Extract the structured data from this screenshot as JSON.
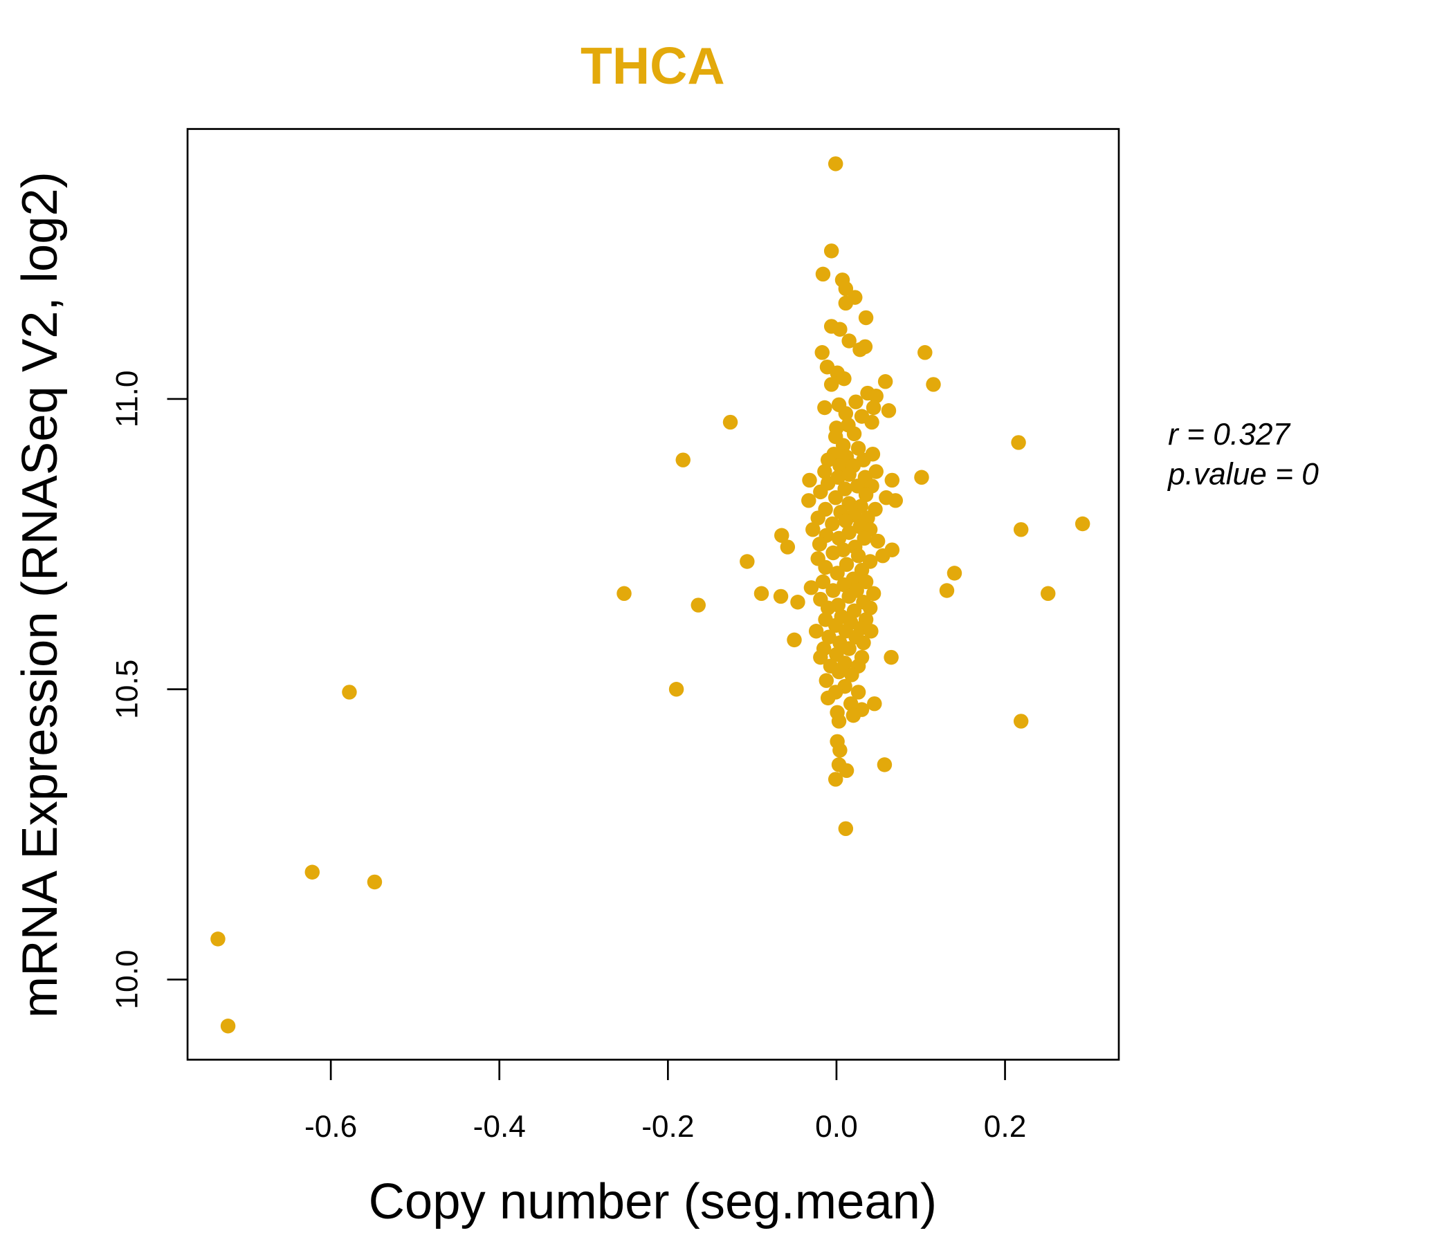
{
  "chart_data": {
    "type": "scatter",
    "title": "THCA",
    "xlabel": "Copy number (seg.mean)",
    "ylabel": "mRNA Expression (RNASeq V2, log2)",
    "xlim": [
      -0.77,
      0.335
    ],
    "ylim": [
      9.862,
      11.465
    ],
    "xticks": [
      -0.6,
      -0.4,
      -0.2,
      0.0,
      0.2
    ],
    "xtick_labels": [
      "-0.6",
      "-0.4",
      "-0.2",
      "0.0",
      "0.2"
    ],
    "yticks": [
      10.0,
      10.5,
      11.0
    ],
    "ytick_labels": [
      "10.0",
      "10.5",
      "11.0"
    ],
    "annotations": [
      "r = 0.327",
      "p.value = 0"
    ],
    "point_color": "#E3A90B",
    "grid": false,
    "legend": "none",
    "points": [
      [
        -0.734,
        10.07
      ],
      [
        -0.722,
        9.92
      ],
      [
        -0.622,
        10.185
      ],
      [
        -0.548,
        10.168
      ],
      [
        -0.578,
        10.495
      ],
      [
        -0.252,
        10.665
      ],
      [
        -0.19,
        10.5
      ],
      [
        -0.182,
        10.895
      ],
      [
        -0.164,
        10.645
      ],
      [
        -0.126,
        10.96
      ],
      [
        -0.106,
        10.72
      ],
      [
        -0.089,
        10.665
      ],
      [
        -0.066,
        10.66
      ],
      [
        -0.065,
        10.765
      ],
      [
        -0.058,
        10.745
      ],
      [
        -0.05,
        10.585
      ],
      [
        -0.046,
        10.65
      ],
      [
        -0.001,
        11.405
      ],
      [
        -0.006,
        11.255
      ],
      [
        -0.016,
        11.215
      ],
      [
        0.007,
        11.205
      ],
      [
        0.011,
        11.19
      ],
      [
        0.011,
        11.165
      ],
      [
        0.022,
        11.175
      ],
      [
        0.035,
        11.14
      ],
      [
        -0.006,
        11.125
      ],
      [
        0.004,
        11.12
      ],
      [
        0.015,
        11.1
      ],
      [
        -0.017,
        11.08
      ],
      [
        0.028,
        11.085
      ],
      [
        0.034,
        11.09
      ],
      [
        0.105,
        11.08
      ],
      [
        0.115,
        11.025
      ],
      [
        0.058,
        11.03
      ],
      [
        -0.011,
        11.055
      ],
      [
        0.001,
        11.045
      ],
      [
        -0.006,
        11.025
      ],
      [
        0.009,
        11.035
      ],
      [
        0.037,
        11.01
      ],
      [
        0.047,
        11.005
      ],
      [
        -0.014,
        10.985
      ],
      [
        0.003,
        10.99
      ],
      [
        0.023,
        10.995
      ],
      [
        0.044,
        10.985
      ],
      [
        0.062,
        10.98
      ],
      [
        0.011,
        10.975
      ],
      [
        0.03,
        10.97
      ],
      [
        0.0,
        10.95
      ],
      [
        0.014,
        10.955
      ],
      [
        0.042,
        10.96
      ],
      [
        -0.001,
        10.935
      ],
      [
        0.021,
        10.94
      ],
      [
        0.216,
        10.925
      ],
      [
        0.008,
        10.92
      ],
      [
        0.026,
        10.915
      ],
      [
        -0.003,
        10.905
      ],
      [
        0.012,
        10.9
      ],
      [
        0.043,
        10.905
      ],
      [
        -0.01,
        10.895
      ],
      [
        0.032,
        10.895
      ],
      [
        0.004,
        10.885
      ],
      [
        0.02,
        10.885
      ],
      [
        -0.014,
        10.875
      ],
      [
        0.047,
        10.875
      ],
      [
        0.002,
        10.865
      ],
      [
        0.015,
        10.87
      ],
      [
        0.034,
        10.865
      ],
      [
        0.101,
        10.865
      ],
      [
        -0.032,
        10.86
      ],
      [
        -0.01,
        10.855
      ],
      [
        0.066,
        10.86
      ],
      [
        0.025,
        10.85
      ],
      [
        0.01,
        10.845
      ],
      [
        0.042,
        10.85
      ],
      [
        -0.019,
        10.84
      ],
      [
        0.035,
        10.835
      ],
      [
        0.059,
        10.83
      ],
      [
        0.07,
        10.825
      ],
      [
        -0.001,
        10.83
      ],
      [
        -0.033,
        10.825
      ],
      [
        0.015,
        10.82
      ],
      [
        0.029,
        10.815
      ],
      [
        -0.013,
        10.81
      ],
      [
        0.046,
        10.81
      ],
      [
        0.005,
        10.805
      ],
      [
        0.021,
        10.8
      ],
      [
        -0.022,
        10.795
      ],
      [
        0.037,
        10.795
      ],
      [
        0.011,
        10.79
      ],
      [
        -0.005,
        10.785
      ],
      [
        0.292,
        10.785
      ],
      [
        0.028,
        10.78
      ],
      [
        -0.028,
        10.775
      ],
      [
        0.219,
        10.775
      ],
      [
        0.04,
        10.775
      ],
      [
        0.015,
        10.77
      ],
      [
        -0.012,
        10.765
      ],
      [
        0.003,
        10.76
      ],
      [
        0.033,
        10.76
      ],
      [
        0.049,
        10.755
      ],
      [
        -0.02,
        10.75
      ],
      [
        0.022,
        10.745
      ],
      [
        0.008,
        10.74
      ],
      [
        0.066,
        10.74
      ],
      [
        0.055,
        10.73
      ],
      [
        -0.004,
        10.735
      ],
      [
        0.026,
        10.73
      ],
      [
        -0.022,
        10.725
      ],
      [
        0.04,
        10.72
      ],
      [
        0.012,
        10.715
      ],
      [
        -0.013,
        10.71
      ],
      [
        0.03,
        10.705
      ],
      [
        0.14,
        10.7
      ],
      [
        0.001,
        10.7
      ],
      [
        0.02,
        10.69
      ],
      [
        -0.016,
        10.685
      ],
      [
        0.035,
        10.685
      ],
      [
        0.009,
        10.68
      ],
      [
        -0.03,
        10.675
      ],
      [
        -0.004,
        10.67
      ],
      [
        0.024,
        10.67
      ],
      [
        0.131,
        10.67
      ],
      [
        0.251,
        10.665
      ],
      [
        0.044,
        10.665
      ],
      [
        0.015,
        10.66
      ],
      [
        -0.019,
        10.655
      ],
      [
        0.032,
        10.65
      ],
      [
        0.002,
        10.645
      ],
      [
        -0.01,
        10.64
      ],
      [
        0.04,
        10.64
      ],
      [
        0.021,
        10.635
      ],
      [
        0.006,
        10.625
      ],
      [
        -0.013,
        10.62
      ],
      [
        0.035,
        10.62
      ],
      [
        0.017,
        10.615
      ],
      [
        -0.001,
        10.61
      ],
      [
        0.029,
        10.605
      ],
      [
        -0.024,
        10.6
      ],
      [
        0.011,
        10.6
      ],
      [
        0.041,
        10.6
      ],
      [
        -0.009,
        10.59
      ],
      [
        0.023,
        10.59
      ],
      [
        0.004,
        10.58
      ],
      [
        0.032,
        10.58
      ],
      [
        -0.015,
        10.57
      ],
      [
        0.015,
        10.57
      ],
      [
        0.0,
        10.56
      ],
      [
        -0.019,
        10.555
      ],
      [
        0.03,
        10.555
      ],
      [
        0.065,
        10.555
      ],
      [
        0.01,
        10.545
      ],
      [
        -0.007,
        10.54
      ],
      [
        0.026,
        10.54
      ],
      [
        0.003,
        10.53
      ],
      [
        0.018,
        10.525
      ],
      [
        -0.012,
        10.515
      ],
      [
        0.01,
        10.505
      ],
      [
        -0.001,
        10.495
      ],
      [
        0.026,
        10.495
      ],
      [
        -0.01,
        10.485
      ],
      [
        0.017,
        10.475
      ],
      [
        0.045,
        10.475
      ],
      [
        0.03,
        10.465
      ],
      [
        0.001,
        10.46
      ],
      [
        0.02,
        10.455
      ],
      [
        0.003,
        10.445
      ],
      [
        0.219,
        10.445
      ],
      [
        0.001,
        10.41
      ],
      [
        0.004,
        10.395
      ],
      [
        0.003,
        10.37
      ],
      [
        0.057,
        10.37
      ],
      [
        0.012,
        10.36
      ],
      [
        -0.001,
        10.345
      ],
      [
        0.011,
        10.26
      ]
    ]
  }
}
